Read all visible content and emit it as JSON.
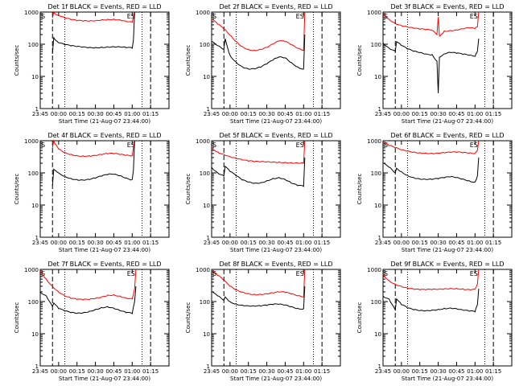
{
  "colors": {
    "events": "#000000",
    "lld": "#ff0000",
    "axes": "#000000",
    "background": "#ffffff"
  },
  "chart_data": [
    {
      "type": "line",
      "scale_y": "log",
      "title": "Det 1f BLACK = Events, RED = LLD",
      "xlabel": "Start Time (21-Aug-07 23:44:00)",
      "ylabel": "Counts/sec",
      "ylim": [
        1,
        1000
      ],
      "xticks": [
        "23:45",
        "00:00",
        "00:15",
        "00:30",
        "00:45",
        "01:00",
        "01:15"
      ],
      "yticks": [
        "1",
        "10",
        "100",
        "1000"
      ],
      "markers": [
        {
          "label": "S",
          "at": "23:45"
        },
        {
          "label": "ES",
          "at": "01:03"
        }
      ],
      "series": [
        {
          "x": [
            "23:55",
            "23:56",
            "23:57",
            "00:00",
            "00:05",
            "00:10",
            "00:15",
            "00:20",
            "00:25",
            "00:30",
            "00:35",
            "00:40",
            "00:45",
            "00:50",
            "00:55",
            "01:00",
            "01:01",
            "01:02"
          ],
          "values": [
            650,
            1000,
            900,
            800,
            650,
            580,
            530,
            520,
            520,
            540,
            580,
            600,
            610,
            580,
            520,
            480,
            700,
            1000
          ]
        },
        {
          "x": [
            "23:55",
            "23:56",
            "23:57",
            "00:00",
            "00:05",
            "00:10",
            "00:15",
            "00:20",
            "00:25",
            "00:30",
            "00:35",
            "00:40",
            "00:45",
            "00:50",
            "00:55",
            "01:00",
            "01:01",
            "01:02"
          ],
          "values": [
            50,
            160,
            140,
            110,
            95,
            88,
            84,
            82,
            80,
            80,
            82,
            84,
            84,
            82,
            78,
            75,
            130,
            1000
          ]
        }
      ]
    },
    {
      "type": "line",
      "scale_y": "log",
      "title": "Det 2f BLACK = Events, RED = LLD",
      "xlabel": "Start Time (21-Aug-07 23:44:00)",
      "ylabel": "Counts/sec",
      "ylim": [
        1,
        1000
      ],
      "xticks": [
        "23:45",
        "00:00",
        "00:15",
        "00:30",
        "00:45",
        "01:00",
        "01:15"
      ],
      "yticks": [
        "1",
        "10",
        "100",
        "1000"
      ],
      "markers": [
        {
          "label": "S",
          "at": "23:45"
        },
        {
          "label": "ES",
          "at": "01:01"
        }
      ],
      "series": [
        {
          "x": [
            "23:45",
            "23:50",
            "23:55",
            "00:00",
            "00:05",
            "00:10",
            "00:15",
            "00:20",
            "00:25",
            "00:30",
            "00:35",
            "00:40",
            "00:45",
            "00:50",
            "00:55",
            "01:00",
            "01:01"
          ],
          "values": [
            600,
            420,
            300,
            190,
            120,
            85,
            70,
            65,
            70,
            80,
            100,
            125,
            120,
            95,
            75,
            65,
            1000
          ]
        },
        {
          "x": [
            "23:45",
            "23:50",
            "23:55",
            "23:56",
            "00:00",
            "00:05",
            "00:10",
            "00:15",
            "00:20",
            "00:25",
            "00:30",
            "00:35",
            "00:40",
            "00:45",
            "00:50",
            "00:55",
            "01:00",
            "01:01"
          ],
          "values": [
            120,
            90,
            70,
            150,
            45,
            28,
            20,
            17,
            17,
            19,
            24,
            32,
            40,
            38,
            27,
            20,
            17,
            200
          ]
        }
      ]
    },
    {
      "type": "line",
      "scale_y": "log",
      "title": "Det 3f BLACK = Events, RED = LLD",
      "xlabel": "Start Time (21-Aug-07 23:44:00)",
      "ylabel": "Counts/sec",
      "ylim": [
        1,
        1000
      ],
      "xticks": [
        "23:45",
        "00:00",
        "00:15",
        "00:30",
        "00:45",
        "01:00",
        "01:15"
      ],
      "yticks": [
        "1",
        "10",
        "100",
        "1000"
      ],
      "markers": [
        {
          "label": "S",
          "at": "23:45"
        },
        {
          "label": "ES",
          "at": "01:03"
        }
      ],
      "series": [
        {
          "x": [
            "23:45",
            "23:50",
            "23:55",
            "00:00",
            "00:05",
            "00:10",
            "00:15",
            "00:20",
            "00:25",
            "00:29",
            "00:30",
            "00:31",
            "00:35",
            "00:40",
            "00:45",
            "00:50",
            "00:55",
            "01:00",
            "01:02",
            "01:03"
          ],
          "values": [
            900,
            600,
            450,
            380,
            340,
            310,
            290,
            280,
            270,
            200,
            700,
            180,
            260,
            270,
            280,
            300,
            320,
            300,
            350,
            1000
          ]
        },
        {
          "x": [
            "23:45",
            "23:50",
            "23:55",
            "23:56",
            "00:00",
            "00:05",
            "00:10",
            "00:15",
            "00:20",
            "00:25",
            "00:29",
            "00:30",
            "00:31",
            "00:35",
            "00:40",
            "00:45",
            "00:50",
            "00:55",
            "01:00",
            "01:02",
            "01:03"
          ],
          "values": [
            110,
            75,
            60,
            120,
            90,
            70,
            60,
            55,
            50,
            48,
            30,
            3,
            40,
            50,
            55,
            52,
            48,
            45,
            42,
            60,
            150
          ]
        }
      ]
    },
    {
      "type": "line",
      "scale_y": "log",
      "title": "Det 4f BLACK = Events, RED = LLD",
      "xlabel": "Start Time (21-Aug-07 23:44:00)",
      "ylabel": "Counts/sec",
      "ylim": [
        1,
        1000
      ],
      "xticks": [
        "23:45",
        "00:00",
        "00:15",
        "00:30",
        "00:45",
        "01:00",
        "01:15"
      ],
      "yticks": [
        "1",
        "10",
        "100",
        "1000"
      ],
      "markers": [
        {
          "label": "S",
          "at": "23:45"
        },
        {
          "label": "ES",
          "at": "01:03"
        }
      ],
      "series": [
        {
          "x": [
            "23:55",
            "23:56",
            "23:57",
            "00:00",
            "00:05",
            "00:10",
            "00:15",
            "00:20",
            "00:25",
            "00:30",
            "00:35",
            "00:40",
            "00:45",
            "00:50",
            "00:55",
            "01:00",
            "01:01",
            "01:02"
          ],
          "values": [
            600,
            1000,
            800,
            550,
            430,
            380,
            350,
            340,
            340,
            350,
            370,
            390,
            390,
            370,
            350,
            340,
            600,
            1000
          ]
        },
        {
          "x": [
            "23:55",
            "23:56",
            "23:57",
            "00:00",
            "00:05",
            "00:10",
            "00:15",
            "00:20",
            "00:25",
            "00:30",
            "00:35",
            "00:40",
            "00:45",
            "00:50",
            "00:55",
            "01:00",
            "01:01",
            "01:02"
          ],
          "values": [
            40,
            130,
            120,
            100,
            80,
            68,
            62,
            60,
            62,
            68,
            78,
            88,
            90,
            82,
            70,
            62,
            120,
            1000
          ]
        }
      ]
    },
    {
      "type": "line",
      "scale_y": "log",
      "title": "Det 5f BLACK = Events, RED = LLD",
      "xlabel": "Start Time (21-Aug-07 23:44:00)",
      "ylabel": "Counts/sec",
      "ylim": [
        1,
        1000
      ],
      "xticks": [
        "23:45",
        "00:00",
        "00:15",
        "00:30",
        "00:45",
        "01:00",
        "01:15"
      ],
      "yticks": [
        "1",
        "10",
        "100",
        "1000"
      ],
      "markers": [
        {
          "label": "S",
          "at": "23:45"
        },
        {
          "label": "ES",
          "at": "01:01"
        }
      ],
      "series": [
        {
          "x": [
            "23:45",
            "23:50",
            "23:55",
            "00:00",
            "00:05",
            "00:10",
            "00:15",
            "00:20",
            "00:25",
            "00:30",
            "00:35",
            "00:40",
            "00:45",
            "00:50",
            "00:55",
            "01:00",
            "01:01"
          ],
          "values": [
            600,
            450,
            380,
            320,
            280,
            250,
            230,
            220,
            220,
            220,
            220,
            220,
            215,
            210,
            205,
            200,
            1000
          ]
        },
        {
          "x": [
            "23:45",
            "23:50",
            "23:55",
            "23:56",
            "00:00",
            "00:05",
            "00:10",
            "00:15",
            "00:20",
            "00:25",
            "00:30",
            "00:35",
            "00:40",
            "00:45",
            "00:50",
            "00:55",
            "01:00",
            "01:01"
          ],
          "values": [
            150,
            100,
            80,
            160,
            110,
            80,
            60,
            52,
            48,
            50,
            58,
            68,
            72,
            62,
            48,
            40,
            38,
            300
          ]
        }
      ]
    },
    {
      "type": "line",
      "scale_y": "log",
      "title": "Det 6f BLACK = Events, RED = LLD",
      "xlabel": "Start Time (21-Aug-07 23:44:00)",
      "ylabel": "Counts/sec",
      "ylim": [
        1,
        1000
      ],
      "xticks": [
        "23:45",
        "00:00",
        "00:15",
        "00:30",
        "00:45",
        "01:00",
        "01:15"
      ],
      "yticks": [
        "1",
        "10",
        "100",
        "1000"
      ],
      "markers": [
        {
          "label": "S",
          "at": "23:45"
        },
        {
          "label": "ES",
          "at": "01:03"
        }
      ],
      "series": [
        {
          "x": [
            "23:45",
            "23:50",
            "23:55",
            "00:00",
            "00:05",
            "00:10",
            "00:15",
            "00:20",
            "00:25",
            "00:30",
            "00:35",
            "00:40",
            "00:45",
            "00:50",
            "00:55",
            "01:00",
            "01:02",
            "01:03"
          ],
          "values": [
            900,
            700,
            600,
            520,
            480,
            450,
            430,
            420,
            410,
            410,
            420,
            430,
            430,
            420,
            410,
            400,
            500,
            1000
          ]
        },
        {
          "x": [
            "23:45",
            "23:50",
            "23:55",
            "23:56",
            "00:00",
            "00:05",
            "00:10",
            "00:15",
            "00:20",
            "00:25",
            "00:30",
            "00:35",
            "00:40",
            "00:45",
            "00:50",
            "00:55",
            "01:00",
            "01:02",
            "01:03"
          ],
          "values": [
            200,
            150,
            100,
            140,
            110,
            85,
            72,
            65,
            62,
            62,
            65,
            70,
            75,
            72,
            65,
            58,
            52,
            80,
            300
          ]
        }
      ]
    },
    {
      "type": "line",
      "scale_y": "log",
      "title": "Det 7f BLACK = Events, RED = LLD",
      "xlabel": "Start Time (21-Aug-07 23:44:00)",
      "ylabel": "Counts/sec",
      "ylim": [
        1,
        1000
      ],
      "xticks": [
        "23:45",
        "00:00",
        "00:15",
        "00:30",
        "00:45",
        "01:00",
        "01:15"
      ],
      "yticks": [
        "1",
        "10",
        "100",
        "1000"
      ],
      "markers": [
        {
          "label": "S",
          "at": "23:45"
        },
        {
          "label": "ES",
          "at": "01:03"
        }
      ],
      "series": [
        {
          "x": [
            "23:45",
            "23:50",
            "23:55",
            "00:00",
            "00:05",
            "00:10",
            "00:15",
            "00:20",
            "00:25",
            "00:30",
            "00:35",
            "00:40",
            "00:45",
            "00:50",
            "00:55",
            "01:00",
            "01:02",
            "01:03"
          ],
          "values": [
            900,
            500,
            300,
            200,
            150,
            125,
            115,
            112,
            115,
            125,
            140,
            160,
            165,
            150,
            130,
            120,
            250,
            1000
          ]
        },
        {
          "x": [
            "23:45",
            "23:50",
            "23:55",
            "23:56",
            "00:00",
            "00:05",
            "00:10",
            "00:15",
            "00:20",
            "00:25",
            "00:30",
            "00:35",
            "00:40",
            "00:45",
            "00:50",
            "00:55",
            "01:00",
            "01:02",
            "01:03"
          ],
          "values": [
            200,
            150,
            70,
            90,
            60,
            50,
            45,
            43,
            45,
            50,
            58,
            66,
            70,
            62,
            52,
            45,
            42,
            100,
            300
          ]
        }
      ]
    },
    {
      "type": "line",
      "scale_y": "log",
      "title": "Det 8f BLACK = Events, RED = LLD",
      "xlabel": "Start Time (21-Aug-07 23:44:00)",
      "ylabel": "Counts/sec",
      "ylim": [
        1,
        1000
      ],
      "xticks": [
        "23:45",
        "00:00",
        "00:15",
        "00:30",
        "00:45",
        "01:00",
        "01:15"
      ],
      "yticks": [
        "1",
        "10",
        "100",
        "1000"
      ],
      "markers": [
        {
          "label": "S",
          "at": "23:45"
        },
        {
          "label": "ES",
          "at": "01:01"
        }
      ],
      "series": [
        {
          "x": [
            "23:45",
            "23:50",
            "23:55",
            "00:00",
            "00:05",
            "00:10",
            "00:15",
            "00:20",
            "00:25",
            "00:30",
            "00:35",
            "00:40",
            "00:45",
            "00:50",
            "00:55",
            "01:00",
            "01:01"
          ],
          "values": [
            900,
            650,
            450,
            300,
            230,
            200,
            180,
            170,
            170,
            175,
            185,
            195,
            190,
            170,
            150,
            140,
            1000
          ]
        },
        {
          "x": [
            "23:45",
            "23:50",
            "23:55",
            "23:56",
            "00:00",
            "00:05",
            "00:10",
            "00:15",
            "00:20",
            "00:25",
            "00:30",
            "00:35",
            "00:40",
            "00:45",
            "00:50",
            "00:55",
            "01:00",
            "01:01"
          ],
          "values": [
            200,
            150,
            110,
            140,
            100,
            85,
            78,
            74,
            72,
            72,
            75,
            80,
            82,
            78,
            70,
            62,
            60,
            300
          ]
        }
      ]
    },
    {
      "type": "line",
      "scale_y": "log",
      "title": "Det 9f BLACK = Events, RED = LLD",
      "xlabel": "Start Time (21-Aug-07 23:44:00)",
      "ylabel": "Counts/sec",
      "ylim": [
        1,
        1000
      ],
      "xticks": [
        "23:45",
        "00:00",
        "00:15",
        "00:30",
        "00:45",
        "01:00",
        "01:15"
      ],
      "yticks": [
        "1",
        "10",
        "100",
        "1000"
      ],
      "markers": [
        {
          "label": "S",
          "at": "23:45"
        },
        {
          "label": "ES",
          "at": "01:03"
        }
      ],
      "series": [
        {
          "x": [
            "23:45",
            "23:50",
            "23:55",
            "00:00",
            "00:05",
            "00:10",
            "00:15",
            "00:20",
            "00:25",
            "00:30",
            "00:35",
            "00:40",
            "00:45",
            "00:50",
            "00:55",
            "01:00",
            "01:02",
            "01:03"
          ],
          "values": [
            700,
            450,
            350,
            300,
            260,
            240,
            230,
            230,
            235,
            240,
            250,
            260,
            260,
            250,
            240,
            240,
            350,
            1000
          ]
        },
        {
          "x": [
            "23:45",
            "23:50",
            "23:55",
            "23:56",
            "00:00",
            "00:05",
            "00:10",
            "00:15",
            "00:20",
            "00:25",
            "00:30",
            "00:35",
            "00:40",
            "00:45",
            "00:50",
            "00:55",
            "01:00",
            "01:02",
            "01:03"
          ],
          "values": [
            150,
            120,
            55,
            120,
            80,
            62,
            55,
            52,
            52,
            55,
            58,
            62,
            64,
            60,
            54,
            50,
            48,
            80,
            250
          ]
        }
      ]
    }
  ]
}
